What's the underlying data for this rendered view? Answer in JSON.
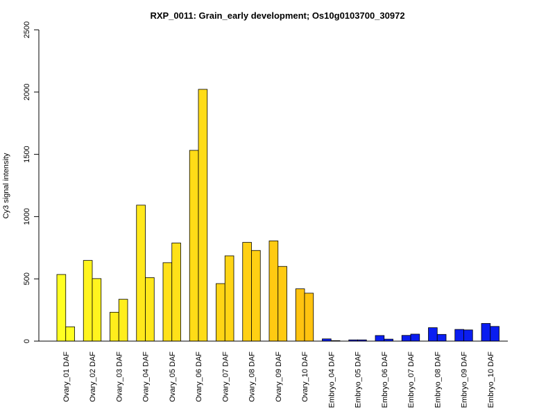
{
  "chart_data": {
    "type": "bar",
    "title": "RXP_0011: Grain_early development; Os10g0103700_30972",
    "xlabel": "",
    "ylabel": "Cy3 signal intensity",
    "ylim": [
      0,
      2500
    ],
    "yticks": [
      "0",
      "500",
      "1000",
      "1500",
      "2000",
      "2500"
    ],
    "grid": false,
    "categories": [
      "Ovary_01 DAF",
      "Ovary_02 DAF",
      "Ovary_03 DAF",
      "Ovary_04 DAF",
      "Ovary_05 DAF",
      "Ovary_06 DAF",
      "Ovary_07 DAF",
      "Ovary_08 DAF",
      "Ovary_09 DAF",
      "Ovary_10 DAF",
      "Embryo_04 DAF",
      "Embryo_05 DAF",
      "Embryo_06 DAF",
      "Embryo_07 DAF",
      "Embryo_08 DAF",
      "Embryo_09 DAF",
      "Embryo_10 DAF"
    ],
    "values": [
      [
        535,
        115
      ],
      [
        648,
        502
      ],
      [
        232,
        336
      ],
      [
        1092,
        510
      ],
      [
        630,
        788
      ],
      [
        1532,
        2022
      ],
      [
        462,
        685
      ],
      [
        793,
        728
      ],
      [
        805,
        600
      ],
      [
        420,
        385
      ],
      [
        18,
        4
      ],
      [
        10,
        10
      ],
      [
        45,
        16
      ],
      [
        46,
        56
      ],
      [
        108,
        54
      ],
      [
        94,
        90
      ],
      [
        142,
        118
      ]
    ],
    "colors": [
      "#FFFF22",
      "#FFF41E",
      "#FFEE1C",
      "#FFE81B",
      "#FFE119",
      "#FFDC17",
      "#FFD515",
      "#FFD013",
      "#FFCA12",
      "#FFC310",
      "#0A1EF0",
      "#0C20EE",
      "#0A1FF2",
      "#0B1DF0",
      "#0A1EF2",
      "#0B1EF0",
      "#0A1DF0"
    ]
  }
}
